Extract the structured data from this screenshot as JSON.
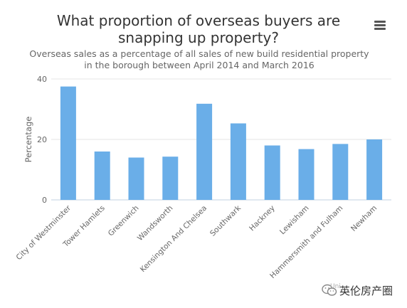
{
  "chart_data": {
    "type": "bar",
    "title": "What proportion of overseas buyers are snapping up property?",
    "subtitle": "Overseas sales as a percentage of all sales of new build residential property in the borough between April 2014 and March 2016",
    "ylabel": "Percentage",
    "xlabel": "",
    "ylim": [
      0,
      40
    ],
    "yticks": [
      0,
      20,
      40
    ],
    "grid": true,
    "legend": "none",
    "bar_color": "#6aaee8",
    "categories": [
      "City of Westminster",
      "Tower Hamlets",
      "Greenwich",
      "Wandsworth",
      "Kensington And Chelsea",
      "Southwark",
      "Hackney",
      "Lewisham",
      "Hammersmith and Fulham",
      "Newham"
    ],
    "values": [
      37.5,
      16,
      14,
      14.3,
      31.8,
      25.3,
      18,
      16.8,
      18.5,
      20
    ]
  },
  "menu_icon": "hamburger-menu-icon",
  "watermark": {
    "icon": "wechat-icon",
    "faint_text": "Uni",
    "text": "英伦房产圈"
  }
}
